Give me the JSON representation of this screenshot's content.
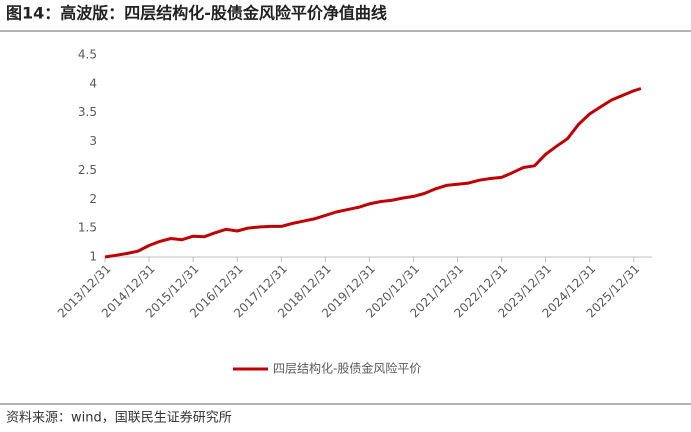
{
  "chart_data": {
    "type": "line",
    "title": "图14：高波版：四层结构化-股债金风险平价净值曲线",
    "x": [
      "2013/12/31",
      "2014/03/31",
      "2014/06/30",
      "2014/09/30",
      "2014/12/31",
      "2015/03/31",
      "2015/06/30",
      "2015/09/30",
      "2015/12/31",
      "2016/03/31",
      "2016/06/30",
      "2016/09/30",
      "2016/12/31",
      "2017/03/31",
      "2017/06/30",
      "2017/09/30",
      "2017/12/31",
      "2018/03/31",
      "2018/06/30",
      "2018/09/30",
      "2018/12/31",
      "2019/03/31",
      "2019/06/30",
      "2019/09/30",
      "2019/12/31",
      "2020/03/31",
      "2020/06/30",
      "2020/09/30",
      "2020/12/31",
      "2021/03/31",
      "2021/06/30",
      "2021/09/30",
      "2021/12/31",
      "2022/03/31",
      "2022/06/30",
      "2022/09/30",
      "2022/12/31",
      "2023/03/31",
      "2023/06/30",
      "2023/09/30",
      "2023/12/31",
      "2024/03/31",
      "2024/06/30",
      "2024/09/30",
      "2024/12/31",
      "2025/03/31",
      "2025/06/30",
      "2025/09/30",
      "2025/12/31",
      "2026/02/28"
    ],
    "series": [
      {
        "name": "四层结构化-股债金风险平价",
        "color": "#c00000",
        "values": [
          1.0,
          1.03,
          1.06,
          1.1,
          1.2,
          1.27,
          1.32,
          1.3,
          1.36,
          1.35,
          1.42,
          1.48,
          1.45,
          1.5,
          1.52,
          1.53,
          1.53,
          1.58,
          1.62,
          1.66,
          1.72,
          1.78,
          1.82,
          1.86,
          1.92,
          1.96,
          1.98,
          2.02,
          2.05,
          2.1,
          2.18,
          2.24,
          2.26,
          2.28,
          2.33,
          2.36,
          2.38,
          2.46,
          2.55,
          2.58,
          2.78,
          2.92,
          3.05,
          3.3,
          3.48,
          3.6,
          3.72,
          3.8,
          3.88,
          3.92
        ]
      }
    ],
    "xlim": [
      "2013/12/31",
      "2026/05/31"
    ],
    "xticks": [
      "2013/12/31",
      "2014/12/31",
      "2015/12/31",
      "2016/12/31",
      "2017/12/31",
      "2018/12/31",
      "2019/12/31",
      "2020/12/31",
      "2021/12/31",
      "2022/12/31",
      "2023/12/31",
      "2024/12/31",
      "2025/12/31"
    ],
    "ylim": [
      1,
      4.5
    ],
    "yticks": [
      1,
      1.5,
      2,
      2.5,
      3,
      3.5,
      4,
      4.5
    ],
    "legend": "bottom"
  },
  "source": "资料来源：wind，国联民生证券研究所"
}
